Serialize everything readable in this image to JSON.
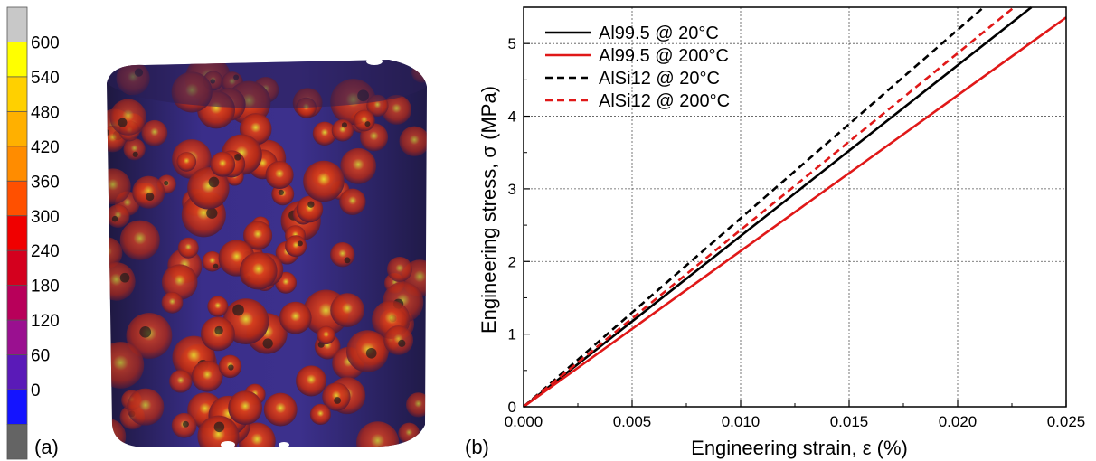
{
  "panel_a": {
    "label": "(a)",
    "colorbar": {
      "ticks": [
        "600",
        "540",
        "480",
        "420",
        "360",
        "300",
        "240",
        "180",
        "120",
        "60",
        "0"
      ],
      "colors": [
        "#c8c8c8",
        "#ffff00",
        "#ffd000",
        "#ffb000",
        "#ff8c00",
        "#ff5000",
        "#f00000",
        "#d4001e",
        "#b8005a",
        "#9a1090",
        "#5a1ab8",
        "#1414ff",
        "#646464"
      ]
    },
    "render_colors": {
      "dark": "#2a1f55",
      "mid": "#3a2e8a",
      "red": "#c8301e",
      "yellow": "#e8e030"
    }
  },
  "panel_b": {
    "label": "(b)",
    "chart_data": {
      "type": "line",
      "xlabel": "Engineering strain, ε (%)",
      "ylabel": "Engineering stress, σ (MPa)",
      "xlim": [
        0,
        0.025
      ],
      "ylim": [
        0,
        5.5
      ],
      "xticks": [
        "0.000",
        "0.005",
        "0.010",
        "0.015",
        "0.020",
        "0.025"
      ],
      "yticks": [
        "0",
        "1",
        "2",
        "3",
        "4",
        "5"
      ],
      "grid": true,
      "legend_position": "top-left",
      "series": [
        {
          "name": "Al99.5 @ 20°C",
          "color": "#000000",
          "dash": "solid",
          "x": [
            0,
            0.0234
          ],
          "y": [
            0,
            5.5
          ]
        },
        {
          "name": "Al99.5 @ 200°C",
          "color": "#e01818",
          "dash": "solid",
          "x": [
            0,
            0.025
          ],
          "y": [
            0,
            5.36
          ]
        },
        {
          "name": "AlSi12 @ 20°C",
          "color": "#000000",
          "dash": "dashed",
          "x": [
            0,
            0.0212
          ],
          "y": [
            0,
            5.5
          ]
        },
        {
          "name": "AlSi12 @ 200°C",
          "color": "#e01818",
          "dash": "dashed",
          "x": [
            0,
            0.0226
          ],
          "y": [
            0,
            5.5
          ]
        }
      ]
    }
  }
}
